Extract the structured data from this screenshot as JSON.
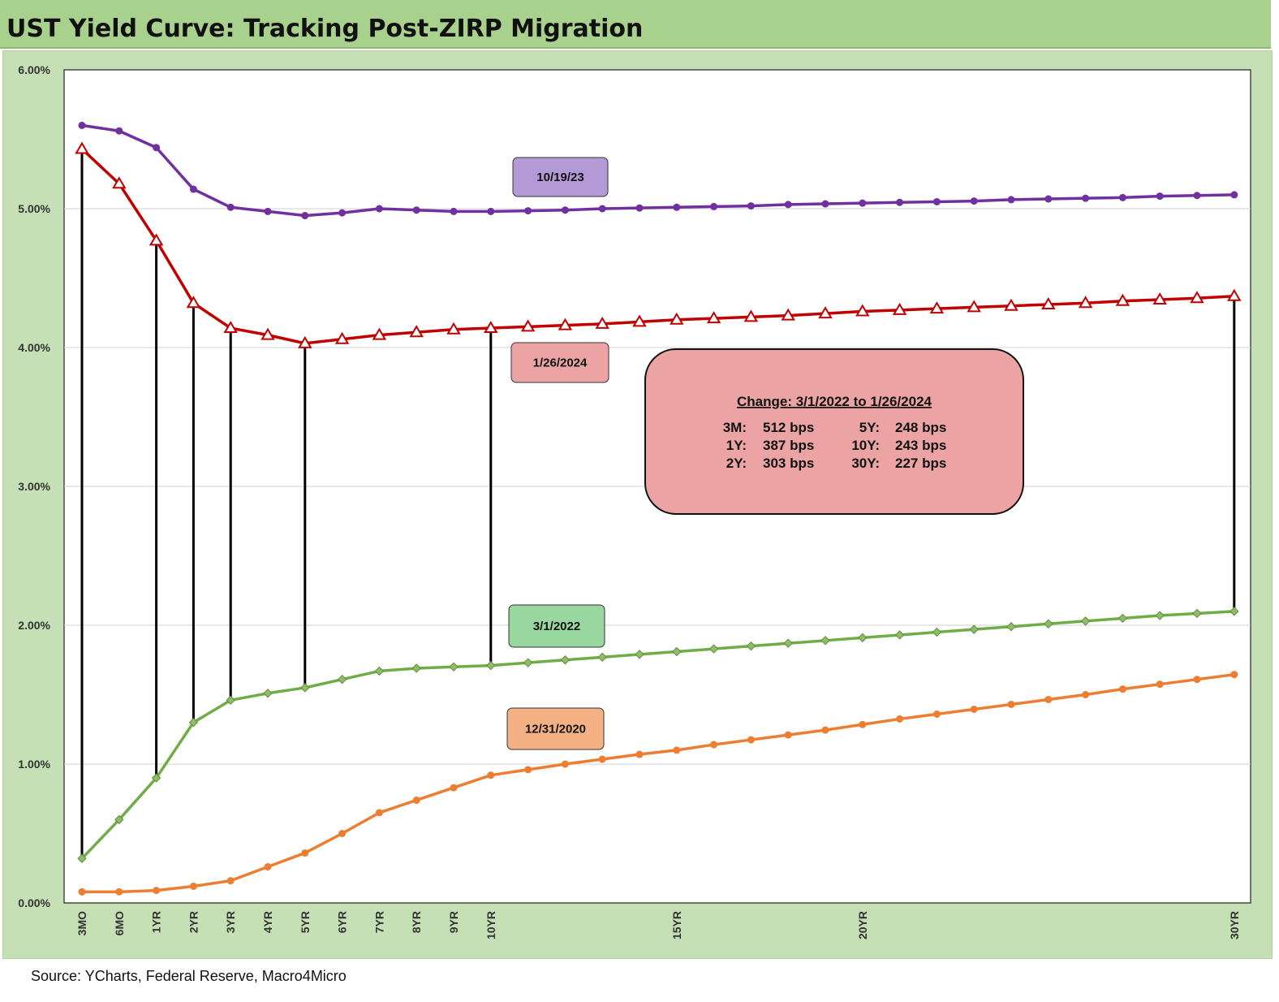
{
  "header": {
    "title": "UST Yield Curve: Tracking Post-ZIRP Migration"
  },
  "footer": {
    "source": "Source: YCharts, Federal Reserve, Macro4Micro"
  },
  "colors": {
    "s20231019": "#7030a0",
    "s20240126": "#c00000",
    "s20220301": "#70ad47",
    "s20201231": "#ed7d31",
    "header_bg": "#a9d18e",
    "panel_bg": "#c5e0b4"
  },
  "chart_data": {
    "type": "line",
    "title": "UST Yield Curve: Tracking Post-ZIRP Migration",
    "xlabel": "",
    "ylabel": "",
    "ylim": [
      0,
      6
    ],
    "yticks": [
      "0.00%",
      "1.00%",
      "2.00%",
      "3.00%",
      "4.00%",
      "5.00%",
      "6.00%"
    ],
    "grid": true,
    "x": [
      "3MO",
      "6MO",
      "1YR",
      "2YR",
      "3YR",
      "4YR",
      "5YR",
      "6YR",
      "7YR",
      "8YR",
      "9YR",
      "10YR",
      "11YR",
      "12YR",
      "13YR",
      "14YR",
      "15YR",
      "16YR",
      "17YR",
      "18YR",
      "19YR",
      "20YR",
      "21YR",
      "22YR",
      "23YR",
      "24YR",
      "25YR",
      "26YR",
      "27YR",
      "28YR",
      "29YR",
      "30YR"
    ],
    "xtick_labels": [
      "3MO",
      "6MO",
      "1YR",
      "2YR",
      "3YR",
      "4YR",
      "5YR",
      "6YR",
      "7YR",
      "8YR",
      "9YR",
      "10YR",
      "",
      "",
      "",
      "",
      "15YR",
      "",
      "",
      "",
      "",
      "20YR",
      "",
      "",
      "",
      "",
      "",
      "",
      "",
      "",
      "",
      "30YR"
    ],
    "series": [
      {
        "name": "10/19/23",
        "marker": "circle",
        "values": [
          5.6,
          5.56,
          5.44,
          5.14,
          5.01,
          4.98,
          4.95,
          4.97,
          5.0,
          4.99,
          4.98,
          4.98,
          4.985,
          4.99,
          5.0,
          5.005,
          5.01,
          5.015,
          5.02,
          5.03,
          5.035,
          5.04,
          5.045,
          5.05,
          5.055,
          5.065,
          5.07,
          5.075,
          5.08,
          5.09,
          5.095,
          5.1
        ]
      },
      {
        "name": "1/26/2024",
        "marker": "triangle",
        "values": [
          5.43,
          5.18,
          4.77,
          4.32,
          4.14,
          4.09,
          4.03,
          4.06,
          4.09,
          4.11,
          4.13,
          4.14,
          4.15,
          4.16,
          4.17,
          4.185,
          4.2,
          4.21,
          4.22,
          4.23,
          4.245,
          4.26,
          4.27,
          4.28,
          4.29,
          4.3,
          4.31,
          4.32,
          4.335,
          4.345,
          4.355,
          4.37
        ]
      },
      {
        "name": "3/1/2022",
        "marker": "diamond",
        "values": [
          0.32,
          0.6,
          0.9,
          1.3,
          1.46,
          1.51,
          1.55,
          1.61,
          1.67,
          1.69,
          1.7,
          1.71,
          1.73,
          1.75,
          1.77,
          1.79,
          1.81,
          1.83,
          1.85,
          1.87,
          1.89,
          1.91,
          1.93,
          1.95,
          1.97,
          1.99,
          2.01,
          2.03,
          2.05,
          2.07,
          2.085,
          2.1
        ]
      },
      {
        "name": "12/31/2020",
        "marker": "circle",
        "values": [
          0.08,
          0.08,
          0.09,
          0.12,
          0.16,
          0.26,
          0.36,
          0.5,
          0.65,
          0.74,
          0.83,
          0.92,
          0.96,
          1.0,
          1.035,
          1.07,
          1.1,
          1.14,
          1.175,
          1.21,
          1.245,
          1.285,
          1.325,
          1.36,
          1.395,
          1.43,
          1.465,
          1.5,
          1.54,
          1.575,
          1.61,
          1.645
        ]
      }
    ],
    "change_box": {
      "title": "Change: 3/1/2022 to 1/26/2024",
      "left": [
        {
          "label": "3M:",
          "value": "512 bps"
        },
        {
          "label": "1Y:",
          "value": "387 bps"
        },
        {
          "label": "2Y:",
          "value": "303 bps"
        }
      ],
      "right": [
        {
          "label": "5Y:",
          "value": "248 bps"
        },
        {
          "label": "10Y:",
          "value": "243 bps"
        },
        {
          "label": "30Y:",
          "value": "227 bps"
        }
      ]
    },
    "connectors": [
      "3MO",
      "1YR",
      "2YR",
      "3YR",
      "5YR",
      "10YR",
      "30YR"
    ]
  }
}
